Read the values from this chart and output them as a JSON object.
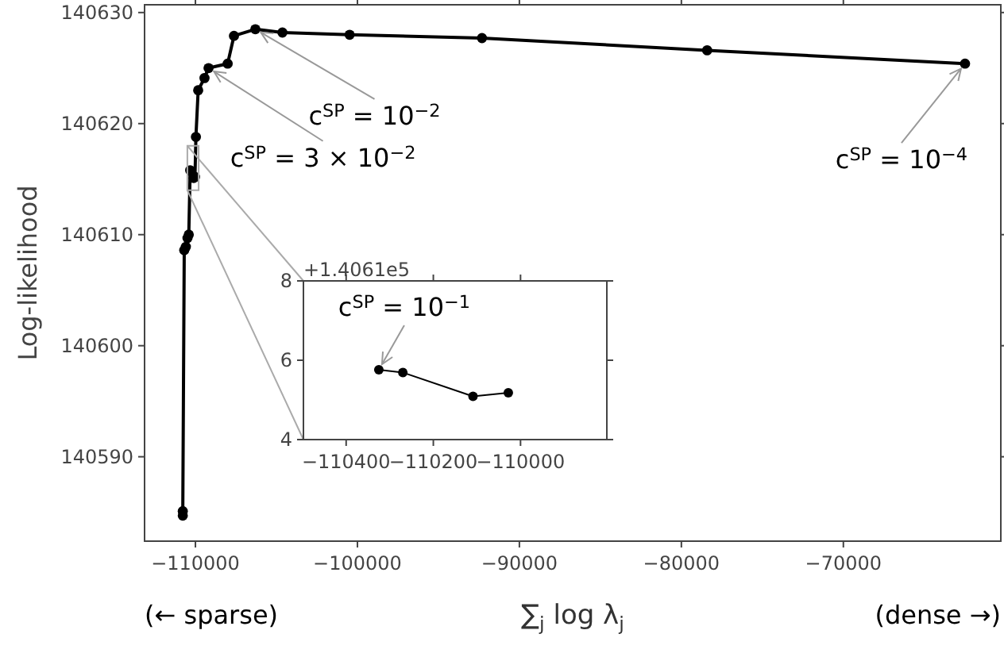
{
  "chart_data": [
    {
      "type": "line",
      "ylabel": "Log-likelihood",
      "xlabel": "∑$_{j}$ log λ$_{j}$",
      "marker": "circle",
      "xlim": [
        -113140,
        -60280
      ],
      "ylim": [
        140582.4,
        140630.7
      ],
      "xticks": [
        -110000,
        -100000,
        -90000,
        -80000,
        -70000
      ],
      "yticks": [
        140590,
        140600,
        140610,
        140620,
        140630
      ],
      "series": [
        {
          "color": "#000000",
          "x": [
            -110780,
            -110780,
            -110690,
            -110590,
            -110490,
            -110410,
            -110325,
            -110270,
            -110109,
            -110028,
            -109970,
            -109830,
            -109440,
            -109190,
            -108010,
            -107620,
            -106300,
            -104630,
            -100480,
            -92310,
            -78410,
            -62490
          ],
          "values": [
            140584.7,
            140585.1,
            140608.6,
            140608.9,
            140609.7,
            140610.0,
            140615.8,
            140615.7,
            140615.1,
            140615.2,
            140618.8,
            140623.0,
            140624.1,
            140625.0,
            140625.4,
            140627.9,
            140628.5,
            140628.2,
            140628.0,
            140627.7,
            140626.6,
            140625.4
          ]
        }
      ],
      "annotations": [
        {
          "text": "c$^{SP}$ = 10$^{−2}$",
          "x": -106300,
          "y": 140628.5
        },
        {
          "text": "c$^{SP}$ = 3 × 10$^{−2}$",
          "x": -109190,
          "y": 140625.0
        },
        {
          "text": "c$^{SP}$ = 10$^{−4}$",
          "x": -62490,
          "y": 140625.4
        },
        "(← sparse)",
        "(dense →)"
      ]
    },
    {
      "type": "line",
      "marker": "circle",
      "xlim": [
        -110498,
        -109802
      ],
      "ylim": [
        4,
        8
      ],
      "xticks": [
        -110400,
        -110200,
        -110000
      ],
      "yticks": [
        4,
        6,
        8
      ],
      "series": [
        {
          "color": "#000000",
          "x": [
            -110325,
            -110270,
            -110109,
            -110028
          ],
          "values": [
            5.76,
            5.69,
            5.09,
            5.18
          ]
        }
      ],
      "annotations": [
        "+1.4061e5",
        {
          "text": "c$^{SP}$ = 10$^{−1}$",
          "x": -110325,
          "y": 5.76
        }
      ]
    }
  ]
}
